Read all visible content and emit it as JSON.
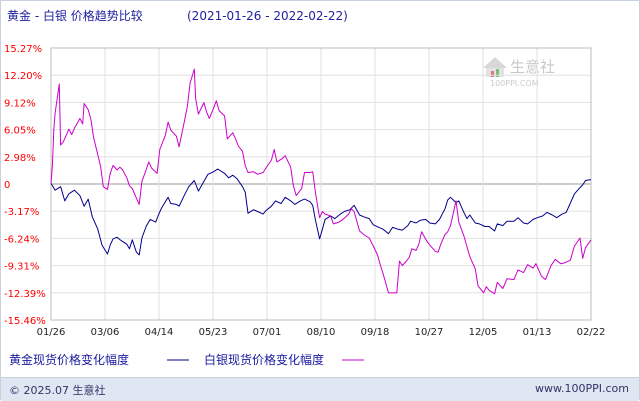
{
  "footer": {
    "left": "© 2025.07 生意社",
    "right": "www.100PPI.com"
  },
  "watermark": {
    "text": "生意社",
    "sub": "100PPI.COM",
    "color": "#c9c9c9"
  },
  "chart_data": {
    "type": "line",
    "title": "黄金 - 白银  价格趋势比较",
    "date_range": "(2021-01-26 - 2022-02-22)",
    "yticks": [
      "15.27%",
      "12.20%",
      "9.12%",
      "6.05%",
      "2.98%",
      "0",
      "-3.17%",
      "-6.24%",
      "-9.31%",
      "-12.39%",
      "-15.46%"
    ],
    "ylim": [
      -15.46,
      15.27
    ],
    "xticks": [
      "01/26",
      "03/06",
      "04/14",
      "05/23",
      "07/01",
      "08/10",
      "09/18",
      "10/27",
      "12/05",
      "01/13",
      "02/22"
    ],
    "xlim": [
      "2021-01-26",
      "2022-02-22"
    ],
    "grid": true,
    "legend_position": "bottom",
    "series": [
      {
        "name": "黄金现货价格变化幅度",
        "color": "#00008b",
        "points": [
          [
            "2021-01-26",
            0.0
          ],
          [
            "2021-01-29",
            -0.8
          ],
          [
            "2021-02-02",
            -0.4
          ],
          [
            "2021-02-05",
            -2.0
          ],
          [
            "2021-02-08",
            -1.2
          ],
          [
            "2021-02-12",
            -0.8
          ],
          [
            "2021-02-16",
            -1.4
          ],
          [
            "2021-02-19",
            -2.6
          ],
          [
            "2021-02-22",
            -1.8
          ],
          [
            "2021-02-25",
            -3.8
          ],
          [
            "2021-03-01",
            -5.2
          ],
          [
            "2021-03-04",
            -7.0
          ],
          [
            "2021-03-08",
            -8.0
          ],
          [
            "2021-03-10",
            -7.0
          ],
          [
            "2021-03-12",
            -6.3
          ],
          [
            "2021-03-15",
            -6.1
          ],
          [
            "2021-03-18",
            -6.5
          ],
          [
            "2021-03-22",
            -6.9
          ],
          [
            "2021-03-24",
            -7.4
          ],
          [
            "2021-03-26",
            -6.4
          ],
          [
            "2021-03-29",
            -7.8
          ],
          [
            "2021-03-31",
            -8.1
          ],
          [
            "2021-04-02",
            -6.2
          ],
          [
            "2021-04-05",
            -4.9
          ],
          [
            "2021-04-08",
            -4.1
          ],
          [
            "2021-04-12",
            -4.4
          ],
          [
            "2021-04-14",
            -3.6
          ],
          [
            "2021-04-16",
            -2.9
          ],
          [
            "2021-04-19",
            -2.1
          ],
          [
            "2021-04-21",
            -1.6
          ],
          [
            "2021-04-23",
            -2.3
          ],
          [
            "2021-04-27",
            -2.4
          ],
          [
            "2021-04-29",
            -2.6
          ],
          [
            "2021-05-03",
            -1.3
          ],
          [
            "2021-05-06",
            -0.4
          ],
          [
            "2021-05-10",
            0.3
          ],
          [
            "2021-05-13",
            -0.9
          ],
          [
            "2021-05-17",
            0.2
          ],
          [
            "2021-05-20",
            1.0
          ],
          [
            "2021-05-24",
            1.3
          ],
          [
            "2021-05-27",
            1.6
          ],
          [
            "2021-06-01",
            1.1
          ],
          [
            "2021-06-04",
            0.6
          ],
          [
            "2021-06-07",
            0.9
          ],
          [
            "2021-06-10",
            0.5
          ],
          [
            "2021-06-14",
            -0.4
          ],
          [
            "2021-06-16",
            -1.0
          ],
          [
            "2021-06-18",
            -3.4
          ],
          [
            "2021-06-22",
            -3.0
          ],
          [
            "2021-06-25",
            -3.2
          ],
          [
            "2021-06-29",
            -3.5
          ],
          [
            "2021-07-01",
            -3.1
          ],
          [
            "2021-07-05",
            -2.6
          ],
          [
            "2021-07-08",
            -2.0
          ],
          [
            "2021-07-12",
            -2.3
          ],
          [
            "2021-07-15",
            -1.6
          ],
          [
            "2021-07-19",
            -2.0
          ],
          [
            "2021-07-22",
            -2.4
          ],
          [
            "2021-07-26",
            -2.0
          ],
          [
            "2021-07-29",
            -1.8
          ],
          [
            "2021-08-02",
            -2.1
          ],
          [
            "2021-08-04",
            -2.5
          ],
          [
            "2021-08-06",
            -4.2
          ],
          [
            "2021-08-09",
            -6.3
          ],
          [
            "2021-08-11",
            -5.2
          ],
          [
            "2021-08-13",
            -4.1
          ],
          [
            "2021-08-17",
            -3.7
          ],
          [
            "2021-08-20",
            -4.0
          ],
          [
            "2021-08-24",
            -3.5
          ],
          [
            "2021-08-27",
            -3.2
          ],
          [
            "2021-08-31",
            -3.0
          ],
          [
            "2021-09-03",
            -2.5
          ],
          [
            "2021-09-07",
            -3.6
          ],
          [
            "2021-09-10",
            -3.8
          ],
          [
            "2021-09-14",
            -4.0
          ],
          [
            "2021-09-17",
            -4.7
          ],
          [
            "2021-09-21",
            -5.0
          ],
          [
            "2021-09-24",
            -5.2
          ],
          [
            "2021-09-28",
            -5.7
          ],
          [
            "2021-10-01",
            -5.0
          ],
          [
            "2021-10-05",
            -5.2
          ],
          [
            "2021-10-08",
            -5.3
          ],
          [
            "2021-10-12",
            -4.8
          ],
          [
            "2021-10-14",
            -4.3
          ],
          [
            "2021-10-18",
            -4.5
          ],
          [
            "2021-10-21",
            -4.2
          ],
          [
            "2021-10-25",
            -4.1
          ],
          [
            "2021-10-28",
            -4.5
          ],
          [
            "2021-11-01",
            -4.6
          ],
          [
            "2021-11-04",
            -4.1
          ],
          [
            "2021-11-08",
            -2.9
          ],
          [
            "2021-11-10",
            -1.9
          ],
          [
            "2021-11-12",
            -1.6
          ],
          [
            "2021-11-16",
            -2.2
          ],
          [
            "2021-11-18",
            -2.0
          ],
          [
            "2021-11-22",
            -3.4
          ],
          [
            "2021-11-24",
            -4.0
          ],
          [
            "2021-11-26",
            -3.6
          ],
          [
            "2021-11-30",
            -4.5
          ],
          [
            "2021-12-03",
            -4.6
          ],
          [
            "2021-12-07",
            -4.9
          ],
          [
            "2021-12-10",
            -4.9
          ],
          [
            "2021-12-14",
            -5.4
          ],
          [
            "2021-12-16",
            -4.6
          ],
          [
            "2021-12-20",
            -4.8
          ],
          [
            "2021-12-23",
            -4.3
          ],
          [
            "2021-12-28",
            -4.3
          ],
          [
            "2021-12-31",
            -3.9
          ],
          [
            "2022-01-04",
            -4.5
          ],
          [
            "2022-01-07",
            -4.6
          ],
          [
            "2022-01-11",
            -4.1
          ],
          [
            "2022-01-14",
            -3.9
          ],
          [
            "2022-01-18",
            -3.7
          ],
          [
            "2022-01-21",
            -3.3
          ],
          [
            "2022-01-25",
            -3.6
          ],
          [
            "2022-01-28",
            -3.9
          ],
          [
            "2022-02-01",
            -3.5
          ],
          [
            "2022-02-04",
            -3.3
          ],
          [
            "2022-02-08",
            -1.9
          ],
          [
            "2022-02-10",
            -1.2
          ],
          [
            "2022-02-14",
            -0.5
          ],
          [
            "2022-02-16",
            -0.2
          ],
          [
            "2022-02-18",
            0.3
          ],
          [
            "2022-02-22",
            0.4
          ]
        ]
      },
      {
        "name": "白银现货价格变化幅度",
        "color": "#cc00cc",
        "points": [
          [
            "2021-01-26",
            0.0
          ],
          [
            "2021-01-27",
            2.0
          ],
          [
            "2021-01-28",
            6.0
          ],
          [
            "2021-01-29",
            7.9
          ],
          [
            "2021-02-01",
            11.2
          ],
          [
            "2021-02-02",
            4.3
          ],
          [
            "2021-02-04",
            4.7
          ],
          [
            "2021-02-08",
            6.1
          ],
          [
            "2021-02-10",
            5.5
          ],
          [
            "2021-02-12",
            6.2
          ],
          [
            "2021-02-16",
            7.3
          ],
          [
            "2021-02-18",
            6.7
          ],
          [
            "2021-02-19",
            9.0
          ],
          [
            "2021-02-22",
            8.3
          ],
          [
            "2021-02-24",
            7.2
          ],
          [
            "2021-02-26",
            5.1
          ],
          [
            "2021-03-01",
            3.2
          ],
          [
            "2021-03-03",
            1.9
          ],
          [
            "2021-03-05",
            -0.4
          ],
          [
            "2021-03-08",
            -0.7
          ],
          [
            "2021-03-10",
            1.1
          ],
          [
            "2021-03-12",
            2.0
          ],
          [
            "2021-03-15",
            1.5
          ],
          [
            "2021-03-17",
            1.8
          ],
          [
            "2021-03-19",
            1.5
          ],
          [
            "2021-03-22",
            0.6
          ],
          [
            "2021-03-24",
            -0.3
          ],
          [
            "2021-03-26",
            -0.6
          ],
          [
            "2021-03-29",
            -1.7
          ],
          [
            "2021-03-31",
            -2.4
          ],
          [
            "2021-04-02",
            0.2
          ],
          [
            "2021-04-05",
            1.5
          ],
          [
            "2021-04-07",
            2.4
          ],
          [
            "2021-04-09",
            1.7
          ],
          [
            "2021-04-13",
            1.1
          ],
          [
            "2021-04-15",
            3.8
          ],
          [
            "2021-04-19",
            5.4
          ],
          [
            "2021-04-21",
            6.9
          ],
          [
            "2021-04-23",
            6.0
          ],
          [
            "2021-04-27",
            5.3
          ],
          [
            "2021-04-29",
            4.1
          ],
          [
            "2021-05-03",
            7.1
          ],
          [
            "2021-05-05",
            8.7
          ],
          [
            "2021-05-07",
            11.3
          ],
          [
            "2021-05-10",
            12.9
          ],
          [
            "2021-05-11",
            9.6
          ],
          [
            "2021-05-13",
            7.8
          ],
          [
            "2021-05-17",
            9.1
          ],
          [
            "2021-05-19",
            8.0
          ],
          [
            "2021-05-21",
            7.3
          ],
          [
            "2021-05-24",
            8.5
          ],
          [
            "2021-05-26",
            9.3
          ],
          [
            "2021-05-28",
            8.2
          ],
          [
            "2021-06-01",
            7.6
          ],
          [
            "2021-06-03",
            5.0
          ],
          [
            "2021-06-07",
            5.7
          ],
          [
            "2021-06-09",
            5.0
          ],
          [
            "2021-06-11",
            4.2
          ],
          [
            "2021-06-14",
            3.6
          ],
          [
            "2021-06-16",
            2.0
          ],
          [
            "2021-06-18",
            1.2
          ],
          [
            "2021-06-22",
            1.3
          ],
          [
            "2021-06-25",
            1.0
          ],
          [
            "2021-06-29",
            1.2
          ],
          [
            "2021-07-01",
            1.7
          ],
          [
            "2021-07-05",
            2.6
          ],
          [
            "2021-07-07",
            3.8
          ],
          [
            "2021-07-09",
            2.4
          ],
          [
            "2021-07-13",
            2.8
          ],
          [
            "2021-07-15",
            3.1
          ],
          [
            "2021-07-19",
            1.8
          ],
          [
            "2021-07-21",
            -0.3
          ],
          [
            "2021-07-23",
            -1.4
          ],
          [
            "2021-07-27",
            -0.6
          ],
          [
            "2021-07-29",
            1.2
          ],
          [
            "2021-08-02",
            1.2
          ],
          [
            "2021-08-04",
            1.3
          ],
          [
            "2021-08-06",
            -1.1
          ],
          [
            "2021-08-09",
            -3.9
          ],
          [
            "2021-08-11",
            -3.2
          ],
          [
            "2021-08-13",
            -3.5
          ],
          [
            "2021-08-17",
            -3.7
          ],
          [
            "2021-08-19",
            -4.6
          ],
          [
            "2021-08-23",
            -4.4
          ],
          [
            "2021-08-26",
            -4.1
          ],
          [
            "2021-08-30",
            -3.5
          ],
          [
            "2021-09-01",
            -2.9
          ],
          [
            "2021-09-03",
            -3.2
          ],
          [
            "2021-09-07",
            -5.4
          ],
          [
            "2021-09-10",
            -5.8
          ],
          [
            "2021-09-14",
            -6.2
          ],
          [
            "2021-09-17",
            -7.1
          ],
          [
            "2021-09-20",
            -8.1
          ],
          [
            "2021-09-22",
            -9.2
          ],
          [
            "2021-09-24",
            -10.2
          ],
          [
            "2021-09-28",
            -12.4
          ],
          [
            "2021-10-01",
            -12.4
          ],
          [
            "2021-10-04",
            -12.4
          ],
          [
            "2021-10-06",
            -8.8
          ],
          [
            "2021-10-08",
            -9.3
          ],
          [
            "2021-10-11",
            -8.8
          ],
          [
            "2021-10-13",
            -8.4
          ],
          [
            "2021-10-15",
            -7.4
          ],
          [
            "2021-10-18",
            -7.6
          ],
          [
            "2021-10-20",
            -6.9
          ],
          [
            "2021-10-22",
            -5.5
          ],
          [
            "2021-10-26",
            -6.6
          ],
          [
            "2021-10-28",
            -7.0
          ],
          [
            "2021-11-01",
            -7.7
          ],
          [
            "2021-11-03",
            -7.8
          ],
          [
            "2021-11-05",
            -6.9
          ],
          [
            "2021-11-08",
            -5.8
          ],
          [
            "2021-11-10",
            -5.5
          ],
          [
            "2021-11-12",
            -4.8
          ],
          [
            "2021-11-16",
            -2.0
          ],
          [
            "2021-11-18",
            -4.4
          ],
          [
            "2021-11-22",
            -6.1
          ],
          [
            "2021-11-24",
            -7.2
          ],
          [
            "2021-11-26",
            -8.3
          ],
          [
            "2021-11-30",
            -9.7
          ],
          [
            "2021-12-02",
            -11.6
          ],
          [
            "2021-12-06",
            -12.4
          ],
          [
            "2021-12-08",
            -11.7
          ],
          [
            "2021-12-10",
            -12.1
          ],
          [
            "2021-12-14",
            -12.5
          ],
          [
            "2021-12-16",
            -11.2
          ],
          [
            "2021-12-20",
            -11.9
          ],
          [
            "2021-12-23",
            -10.8
          ],
          [
            "2021-12-28",
            -10.9
          ],
          [
            "2021-12-31",
            -9.8
          ],
          [
            "2022-01-04",
            -10.1
          ],
          [
            "2022-01-07",
            -9.2
          ],
          [
            "2022-01-11",
            -9.6
          ],
          [
            "2022-01-13",
            -9.1
          ],
          [
            "2022-01-17",
            -10.5
          ],
          [
            "2022-01-20",
            -10.9
          ],
          [
            "2022-01-24",
            -9.3
          ],
          [
            "2022-01-27",
            -8.6
          ],
          [
            "2022-01-31",
            -9.1
          ],
          [
            "2022-02-03",
            -9.0
          ],
          [
            "2022-02-07",
            -8.7
          ],
          [
            "2022-02-10",
            -7.1
          ],
          [
            "2022-02-14",
            -6.2
          ],
          [
            "2022-02-16",
            -8.5
          ],
          [
            "2022-02-18",
            -7.3
          ],
          [
            "2022-02-22",
            -6.4
          ]
        ]
      }
    ]
  }
}
